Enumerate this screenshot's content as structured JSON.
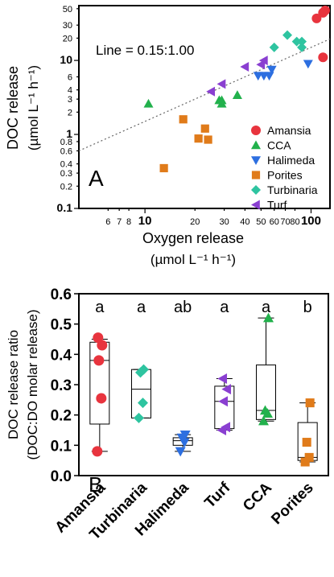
{
  "chart_data": [
    {
      "panel": "A",
      "type": "scatter",
      "xlabel": "Oxygen release",
      "xunit": "(µmol L⁻¹ h⁻¹)",
      "ylabel": "DOC release",
      "yunit": "(µmol L⁻¹ h⁻¹)",
      "xscale": "log",
      "yscale": "log",
      "xlim": [
        4,
        130
      ],
      "ylim": [
        0.1,
        55
      ],
      "xticks": [
        6,
        7,
        8,
        10,
        20,
        30,
        40,
        50,
        60,
        70,
        80,
        100
      ],
      "xtick_labels": [
        "6",
        "7",
        "8",
        "10",
        "20",
        "30",
        "40",
        "50",
        "60",
        "70",
        "80",
        "100"
      ],
      "yticks": [
        0.1,
        0.2,
        0.3,
        0.4,
        0.6,
        0.8,
        1,
        2,
        3,
        4,
        6,
        10,
        20,
        30,
        50
      ],
      "ytick_labels": [
        "0.1",
        "0.2",
        "0.3",
        "0.4",
        "0.6",
        "0.8",
        "1",
        "2",
        "3",
        "4",
        "6",
        "10",
        "20",
        "30",
        "50"
      ],
      "annotation": "Line = 0.15:1.00",
      "reference_line": {
        "slope": 0.15,
        "style": "dotted"
      },
      "legend_position": "bottom-right",
      "series": [
        {
          "name": "Amansia",
          "marker": "circle",
          "color": "#e8343e",
          "points": [
            [
              108,
              37
            ],
            [
              118,
              44
            ],
            [
              130,
              50
            ],
            [
              118,
              11
            ]
          ]
        },
        {
          "name": "CCA",
          "marker": "triangle-up",
          "color": "#22b14c",
          "points": [
            [
              10.5,
              2.6
            ],
            [
              28,
              2.9
            ],
            [
              29,
              2.6
            ],
            [
              29,
              2.9
            ],
            [
              36,
              3.4
            ]
          ]
        },
        {
          "name": "Halimeda",
          "marker": "triangle-down",
          "color": "#2d6fe0",
          "points": [
            [
              48,
              6.2
            ],
            [
              52,
              6.2
            ],
            [
              56,
              6.2
            ],
            [
              58,
              7.5
            ],
            [
              96,
              9.0
            ]
          ]
        },
        {
          "name": "Porites",
          "marker": "square",
          "color": "#e07b1a",
          "points": [
            [
              13,
              0.35
            ],
            [
              17,
              1.6
            ],
            [
              21,
              0.88
            ],
            [
              23,
              1.2
            ],
            [
              24,
              0.85
            ]
          ]
        },
        {
          "name": "Turbinaria",
          "marker": "diamond",
          "color": "#2ec4a0",
          "points": [
            [
              60,
              15
            ],
            [
              72,
              22
            ],
            [
              82,
              18
            ],
            [
              88,
              15
            ],
            [
              88,
              18
            ]
          ]
        },
        {
          "name": "Turf",
          "marker": "triangle-left",
          "color": "#8a3fd1",
          "points": [
            [
              25,
              3.8
            ],
            [
              29,
              4.8
            ],
            [
              40,
              8.2
            ],
            [
              50,
              8.8
            ],
            [
              52,
              10
            ]
          ]
        }
      ]
    },
    {
      "panel": "B",
      "type": "box",
      "ylabel": "DOC release ratio",
      "ylabel2": "(DOC:DO molar release)",
      "ylim": [
        0,
        0.6
      ],
      "yticks": [
        "0.0",
        "0.1",
        "0.2",
        "0.3",
        "0.4",
        "0.5",
        "0.6"
      ],
      "categories": [
        "Amansia",
        "Turbinaria",
        "Halimeda",
        "Turf",
        "CCA",
        "Porites"
      ],
      "letters": [
        "a",
        "a",
        "ab",
        "a",
        "a",
        "b"
      ],
      "boxes": [
        {
          "min": 0.08,
          "q1": 0.17,
          "median": 0.38,
          "q3": 0.44,
          "max": 0.45,
          "color": "#e8343e",
          "marker": "circle",
          "points": [
            0.08,
            0.255,
            0.38,
            0.43,
            0.455
          ]
        },
        {
          "min": 0.19,
          "q1": 0.19,
          "median": 0.285,
          "q3": 0.35,
          "max": 0.35,
          "color": "#2ec4a0",
          "marker": "diamond",
          "points": [
            0.19,
            0.24,
            0.34,
            0.35
          ]
        },
        {
          "min": 0.08,
          "q1": 0.1,
          "median": 0.115,
          "q3": 0.125,
          "max": 0.135,
          "color": "#2d6fe0",
          "marker": "triangle-down",
          "points": [
            0.08,
            0.11,
            0.125,
            0.135
          ]
        },
        {
          "min": 0.15,
          "q1": 0.155,
          "median": 0.245,
          "q3": 0.295,
          "max": 0.32,
          "color": "#8a3fd1",
          "marker": "triangle-left",
          "points": [
            0.15,
            0.16,
            0.245,
            0.285,
            0.32
          ]
        },
        {
          "min": 0.18,
          "q1": 0.185,
          "median": 0.215,
          "q3": 0.365,
          "max": 0.52,
          "color": "#22b14c",
          "marker": "triangle-up",
          "points": [
            0.18,
            0.205,
            0.215,
            0.52
          ]
        },
        {
          "min": 0.045,
          "q1": 0.05,
          "median": 0.06,
          "q3": 0.175,
          "max": 0.24,
          "color": "#e07b1a",
          "marker": "square",
          "points": [
            0.045,
            0.06,
            0.11,
            0.24
          ]
        }
      ]
    }
  ]
}
